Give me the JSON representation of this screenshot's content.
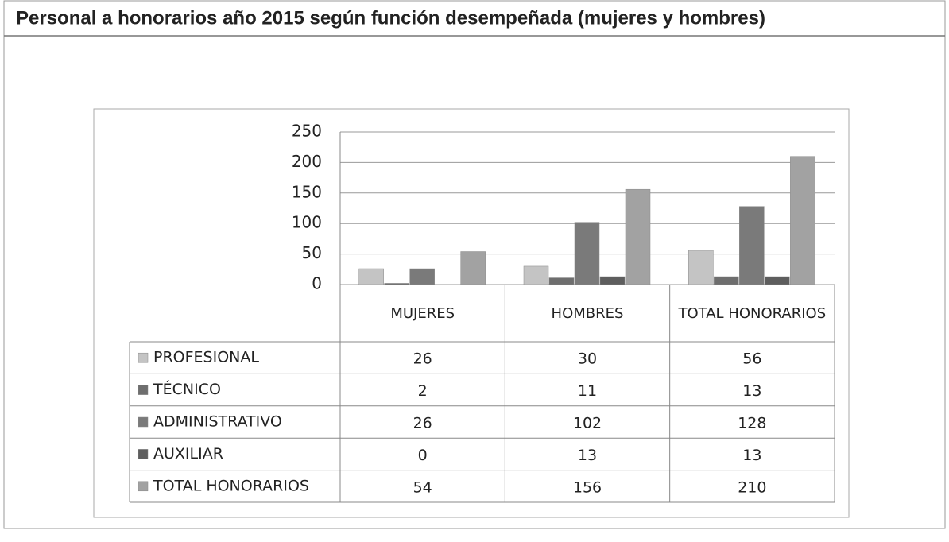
{
  "chart_data": {
    "type": "bar",
    "title": "Personal a honorarios año 2015 según función desempeñada (mujeres y hombres)",
    "categories": [
      "MUJERES",
      "HOMBRES",
      "TOTAL HONORARIOS"
    ],
    "series": [
      {
        "name": "PROFESIONAL",
        "color": "#c4c4c4",
        "values": [
          26,
          30,
          56
        ]
      },
      {
        "name": "TÉCNICO",
        "color": "#6e6e6e",
        "values": [
          2,
          11,
          13
        ]
      },
      {
        "name": "ADMINISTRATIVO",
        "color": "#7a7a7a",
        "values": [
          26,
          102,
          128
        ]
      },
      {
        "name": "AUXILIAR",
        "color": "#5e5e5e",
        "values": [
          0,
          13,
          13
        ]
      },
      {
        "name": "TOTAL HONORARIOS",
        "color": "#a2a2a2",
        "values": [
          54,
          156,
          210
        ]
      }
    ],
    "ylim": [
      0,
      250
    ],
    "yticks": [
      0,
      50,
      100,
      150,
      200,
      250
    ],
    "grid": true
  }
}
